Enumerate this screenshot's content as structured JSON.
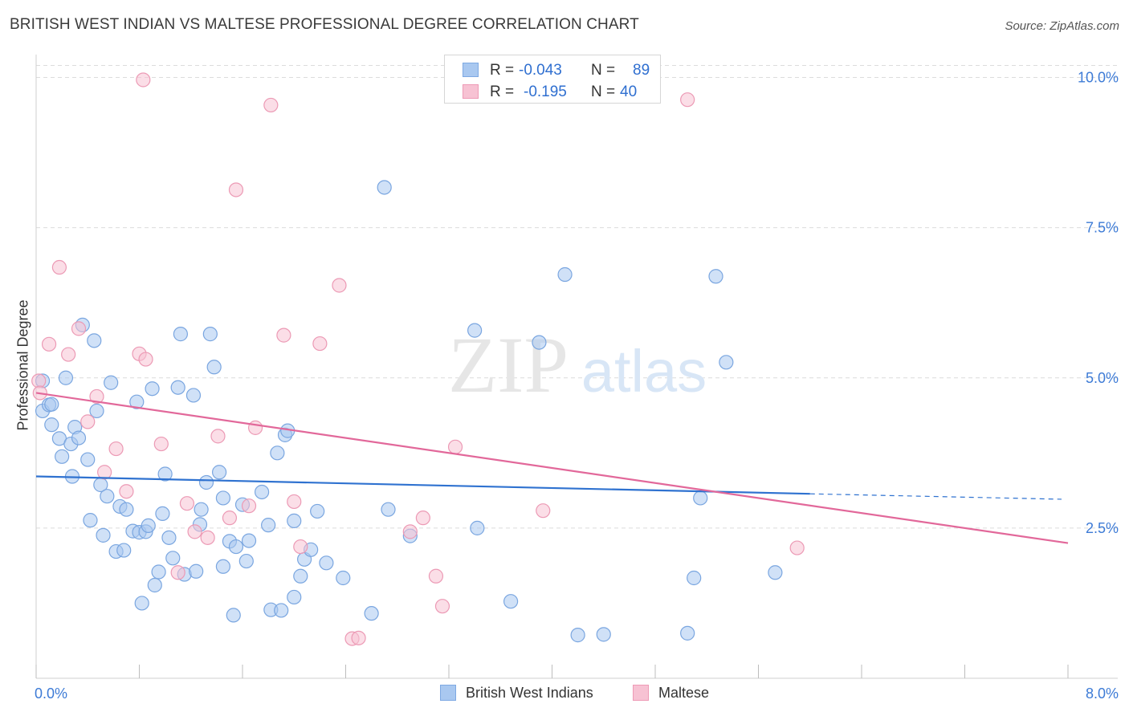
{
  "title": "BRITISH WEST INDIAN VS MALTESE PROFESSIONAL DEGREE CORRELATION CHART",
  "source": "Source: ZipAtlas.com",
  "watermark": {
    "zip": "ZIP",
    "atlas": "atlas"
  },
  "legend": {
    "r_label": "R =",
    "n_label": "N =",
    "rows": [
      {
        "r": "-0.043",
        "n": "89",
        "color": "#a9c8f0",
        "border": "#7ea9e3"
      },
      {
        "r": "-0.195",
        "n": "40",
        "color": "#f7c2d3",
        "border": "#ee9ab6"
      }
    ]
  },
  "colors": {
    "blue_fill": "#a9c8f0",
    "blue_stroke": "#7aa6e0",
    "blue_line": "#2f72d0",
    "pink_fill": "#f7c2d3",
    "pink_stroke": "#ec9ab5",
    "pink_line": "#e2689a",
    "tick_text": "#3d7bd6",
    "grid": "#dcdcdc"
  },
  "chart_data": {
    "type": "scatter",
    "title": "BRITISH WEST INDIAN VS MALTESE PROFESSIONAL DEGREE CORRELATION CHART",
    "xlabel": "",
    "ylabel": "Professional Degree",
    "xlim": [
      0,
      8
    ],
    "ylim": [
      0,
      10.5
    ],
    "x_tick_labels": [
      "0.0%",
      "8.0%"
    ],
    "y_ticks": [
      2.5,
      5.0,
      7.5,
      10.0
    ],
    "y_tick_labels": [
      "2.5%",
      "5.0%",
      "7.5%",
      "10.0%"
    ],
    "grid": true,
    "legend_placement": "bottom-center",
    "series": [
      {
        "name": "British West Indians",
        "r": -0.043,
        "n": 89,
        "trend": {
          "x0": 0.0,
          "y0": 3.36,
          "x1": 6.0,
          "y1": 3.07,
          "dashed_to_x": 7.95,
          "dashed_to_y": 2.98
        },
        "points": [
          [
            0.05,
            4.95
          ],
          [
            0.05,
            4.45
          ],
          [
            0.1,
            4.55
          ],
          [
            0.12,
            4.22
          ],
          [
            0.12,
            4.56
          ],
          [
            0.18,
            3.99
          ],
          [
            0.2,
            3.69
          ],
          [
            0.23,
            5.0
          ],
          [
            0.27,
            3.9
          ],
          [
            0.28,
            3.36
          ],
          [
            0.3,
            4.18
          ],
          [
            0.33,
            4.0
          ],
          [
            0.36,
            5.88
          ],
          [
            0.4,
            3.64
          ],
          [
            0.42,
            2.63
          ],
          [
            0.45,
            5.62
          ],
          [
            0.47,
            4.45
          ],
          [
            0.5,
            3.22
          ],
          [
            0.52,
            2.38
          ],
          [
            0.55,
            3.03
          ],
          [
            0.58,
            4.92
          ],
          [
            0.62,
            2.11
          ],
          [
            0.65,
            2.86
          ],
          [
            0.68,
            2.13
          ],
          [
            0.7,
            2.81
          ],
          [
            0.75,
            2.45
          ],
          [
            0.78,
            4.6
          ],
          [
            0.8,
            2.43
          ],
          [
            0.82,
            1.25
          ],
          [
            0.85,
            2.44
          ],
          [
            0.87,
            2.54
          ],
          [
            0.9,
            4.82
          ],
          [
            0.92,
            1.55
          ],
          [
            0.95,
            1.77
          ],
          [
            0.98,
            2.74
          ],
          [
            1.0,
            3.4
          ],
          [
            1.03,
            2.34
          ],
          [
            1.06,
            2.0
          ],
          [
            1.1,
            4.84
          ],
          [
            1.12,
            5.73
          ],
          [
            1.15,
            1.73
          ],
          [
            1.22,
            4.71
          ],
          [
            1.24,
            1.78
          ],
          [
            1.27,
            2.56
          ],
          [
            1.28,
            2.81
          ],
          [
            1.32,
            3.26
          ],
          [
            1.35,
            5.73
          ],
          [
            1.38,
            5.18
          ],
          [
            1.42,
            3.43
          ],
          [
            1.45,
            1.86
          ],
          [
            1.5,
            2.28
          ],
          [
            1.53,
            1.05
          ],
          [
            1.55,
            2.19
          ],
          [
            1.6,
            2.89
          ],
          [
            1.63,
            1.95
          ],
          [
            1.65,
            2.29
          ],
          [
            1.75,
            3.1
          ],
          [
            1.8,
            2.55
          ],
          [
            1.82,
            1.14
          ],
          [
            1.87,
            3.75
          ],
          [
            1.9,
            1.13
          ],
          [
            1.93,
            4.05
          ],
          [
            1.95,
            4.12
          ],
          [
            2.0,
            2.62
          ],
          [
            2.05,
            1.7
          ],
          [
            2.08,
            1.98
          ],
          [
            2.13,
            2.14
          ],
          [
            2.18,
            2.78
          ],
          [
            2.25,
            1.92
          ],
          [
            2.38,
            1.67
          ],
          [
            2.6,
            1.08
          ],
          [
            2.7,
            8.17
          ],
          [
            2.73,
            2.81
          ],
          [
            2.9,
            2.37
          ],
          [
            3.4,
            5.79
          ],
          [
            3.42,
            2.5
          ],
          [
            3.9,
            5.59
          ],
          [
            4.1,
            6.72
          ],
          [
            4.2,
            0.72
          ],
          [
            4.4,
            0.73
          ],
          [
            5.05,
            0.75
          ],
          [
            5.1,
            1.67
          ],
          [
            5.15,
            3.0
          ],
          [
            5.35,
            5.26
          ],
          [
            5.27,
            6.69
          ],
          [
            5.73,
            1.76
          ],
          [
            3.68,
            1.28
          ],
          [
            1.45,
            3.0
          ],
          [
            2.0,
            1.35
          ]
        ]
      },
      {
        "name": "Maltese",
        "r": -0.195,
        "n": 40,
        "trend": {
          "x0": 0.0,
          "y0": 4.75,
          "x1": 8.0,
          "y1": 2.25
        },
        "points": [
          [
            0.02,
            4.95
          ],
          [
            0.03,
            4.75
          ],
          [
            0.1,
            5.56
          ],
          [
            0.18,
            6.84
          ],
          [
            0.25,
            5.39
          ],
          [
            0.33,
            5.82
          ],
          [
            0.4,
            4.27
          ],
          [
            0.47,
            4.69
          ],
          [
            0.53,
            3.43
          ],
          [
            0.62,
            3.82
          ],
          [
            0.7,
            3.11
          ],
          [
            0.8,
            5.4
          ],
          [
            0.83,
            9.96
          ],
          [
            0.85,
            5.31
          ],
          [
            0.97,
            3.9
          ],
          [
            1.1,
            1.76
          ],
          [
            1.17,
            2.91
          ],
          [
            1.23,
            2.44
          ],
          [
            1.33,
            2.34
          ],
          [
            1.41,
            4.03
          ],
          [
            1.5,
            2.67
          ],
          [
            1.55,
            8.13
          ],
          [
            1.65,
            2.87
          ],
          [
            1.7,
            4.17
          ],
          [
            1.82,
            9.54
          ],
          [
            1.92,
            5.71
          ],
          [
            2.0,
            2.94
          ],
          [
            2.05,
            2.19
          ],
          [
            2.2,
            5.57
          ],
          [
            2.35,
            6.54
          ],
          [
            2.45,
            0.66
          ],
          [
            2.5,
            0.67
          ],
          [
            2.9,
            2.44
          ],
          [
            3.0,
            2.67
          ],
          [
            3.1,
            1.7
          ],
          [
            3.15,
            1.2
          ],
          [
            3.25,
            3.85
          ],
          [
            3.93,
            2.79
          ],
          [
            5.05,
            9.63
          ],
          [
            5.9,
            2.17
          ]
        ]
      }
    ]
  }
}
